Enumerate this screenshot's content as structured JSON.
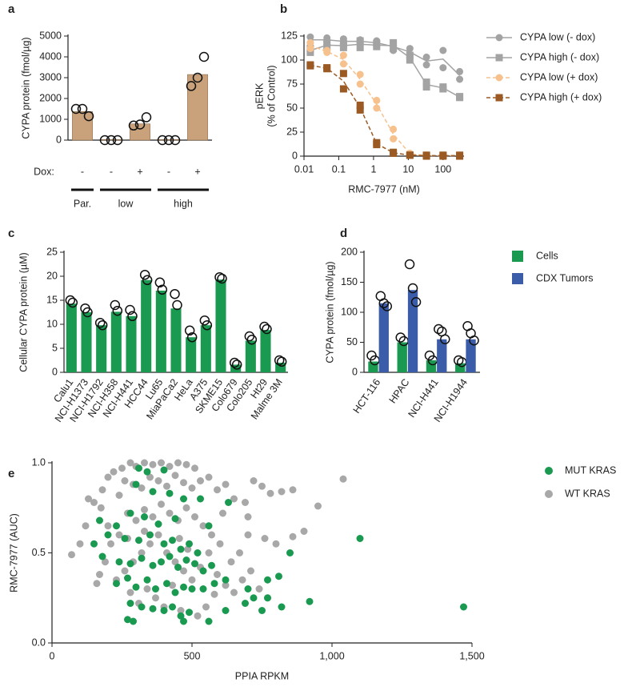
{
  "chart_data": [
    {
      "type": "bar",
      "label": "a",
      "ylabel": "CYPA protein (fmol/µg)",
      "categories": [
        "Par.",
        "low",
        "low",
        "high",
        "high"
      ],
      "dox_label": "Dox:",
      "dox": [
        "-",
        "-",
        "+",
        "-",
        "+"
      ],
      "values": [
        1370,
        30,
        780,
        30,
        3150
      ],
      "points": [
        [
          1500,
          1500,
          1150
        ],
        [
          0,
          0,
          0
        ],
        [
          700,
          750,
          1100
        ],
        [
          0,
          0,
          0
        ],
        [
          2600,
          3000,
          4000
        ]
      ],
      "color": "#c9a27c",
      "ylim": [
        0,
        5000
      ],
      "yticks": [
        0,
        1000,
        2000,
        3000,
        4000,
        5000
      ]
    },
    {
      "type": "line",
      "label": "b",
      "ylabel": [
        "pERK",
        "(% of Control)"
      ],
      "xlabel": "RMC-7977 (nM)",
      "log_x": true,
      "xlim": [
        0.01,
        400
      ],
      "xticks": [
        0.01,
        0.1,
        1,
        10,
        100
      ],
      "ylim": [
        0,
        125
      ],
      "yticks": [
        0,
        25,
        50,
        75,
        100,
        125
      ],
      "legend": "right",
      "series": [
        {
          "name": "CYPA low (- dox)",
          "color": "#a3a3a3",
          "marker": "circle",
          "dashed": false,
          "x": [
            0.0152,
            0.0152,
            0.0457,
            0.0457,
            0.137,
            0.137,
            0.412,
            0.412,
            1.23,
            1.23,
            3.7,
            3.7,
            11.1,
            11.1,
            33.3,
            33.3,
            100,
            100,
            300,
            300
          ],
          "values": [
            124,
            118,
            123,
            119,
            122,
            117,
            121,
            118,
            120,
            116,
            118,
            110,
            112,
            105,
            103,
            95,
            110,
            92,
            88,
            80
          ]
        },
        {
          "name": "CYPA high (- dox)",
          "color": "#a3a3a3",
          "marker": "square",
          "dashed": false,
          "x": [
            0.0152,
            0.0152,
            0.0457,
            0.0457,
            0.137,
            0.137,
            0.412,
            0.412,
            1.23,
            1.23,
            3.7,
            3.7,
            11.1,
            11.1,
            33.3,
            33.3,
            100,
            100,
            300,
            300
          ],
          "values": [
            112,
            108,
            118,
            113,
            117,
            113,
            120,
            113,
            117,
            114,
            118,
            112,
            100,
            105,
            77,
            72,
            72,
            70,
            62,
            61
          ]
        },
        {
          "name": "CYPA low (+ dox)",
          "color": "#f6c18d",
          "marker": "circle",
          "dashed": true,
          "x": [
            0.0152,
            0.0152,
            0.0457,
            0.0457,
            0.137,
            0.137,
            0.412,
            0.412,
            1.23,
            1.23,
            3.7,
            3.7,
            11.1,
            11.1,
            33.3,
            33.3,
            100,
            100,
            300,
            300
          ],
          "values": [
            118,
            112,
            110,
            108,
            105,
            96,
            85,
            75,
            58,
            50,
            28,
            18,
            3,
            2,
            1,
            0,
            0,
            1,
            0,
            1
          ]
        },
        {
          "name": "CYPA high (+ dox)",
          "color": "#9b5a24",
          "marker": "square",
          "dashed": true,
          "x": [
            0.0152,
            0.0152,
            0.0457,
            0.0457,
            0.137,
            0.137,
            0.412,
            0.412,
            1.23,
            1.23,
            3.7,
            3.7,
            11.1,
            11.1,
            33.3,
            33.3,
            100,
            100,
            300,
            300
          ],
          "values": [
            95,
            94,
            92,
            91,
            86,
            70,
            53,
            48,
            14,
            12,
            4,
            3,
            1,
            1,
            0,
            1,
            1,
            0,
            0,
            1
          ]
        }
      ]
    },
    {
      "type": "bar",
      "label": "c",
      "ylabel": "Cellular CYPA protein (µM)",
      "categories": [
        "Calu1",
        "NCI-H1373",
        "NCI-H1792",
        "NCI-H358",
        "NCI-H441",
        "HCC44",
        "Lu65",
        "MiaPaCa2",
        "HeLa",
        "A375",
        "SKME15",
        "Colo679",
        "Colo205",
        "Ht29",
        "Malme 3M"
      ],
      "values": [
        14.3,
        12.5,
        9.8,
        12.6,
        11.7,
        19.2,
        17,
        13.3,
        7.3,
        9.8,
        19.3,
        1.6,
        6.6,
        8.8,
        2
      ],
      "points": [
        [
          15,
          14.5
        ],
        [
          13.3,
          12.5
        ],
        [
          10.3,
          9.8
        ],
        [
          14,
          12.8
        ],
        [
          13,
          11.7
        ],
        [
          20.3,
          19.2
        ],
        [
          18.7,
          17.2
        ],
        [
          16.3,
          14
        ],
        [
          8.7,
          7.3
        ],
        [
          10.8,
          9.8
        ],
        [
          19.8,
          19.5
        ],
        [
          2,
          1.6
        ],
        [
          7.5,
          6.8
        ],
        [
          9.5,
          9
        ],
        [
          2.5,
          2.2
        ]
      ],
      "color": "#1a9a50",
      "ylim": [
        0,
        25
      ],
      "yticks": [
        0,
        5,
        10,
        15,
        20,
        25
      ]
    },
    {
      "type": "bar",
      "label": "d",
      "ylabel": "CYPA protein (fmol/µg)",
      "legend": "right",
      "categories": [
        "HCT-116",
        "HPAC",
        "NCI-H441",
        "NCI-H1944"
      ],
      "ylim": [
        0,
        200
      ],
      "yticks": [
        0,
        50,
        100,
        150,
        200
      ],
      "series": [
        {
          "name": "Cells",
          "color": "#1a9a50",
          "values": [
            18,
            50,
            20,
            15
          ],
          "points": [
            [
              28,
              20
            ],
            [
              58,
              52
            ],
            [
              28,
              20
            ],
            [
              20,
              17
            ]
          ]
        },
        {
          "name": "CDX Tumors",
          "color": "#3b5ca8",
          "values": [
            115,
            137,
            55,
            55
          ],
          "points": [
            [
              127,
              115,
              110
            ],
            [
              180,
              140,
              117
            ],
            [
              72,
              68,
              55
            ],
            [
              77,
              65,
              53
            ]
          ]
        }
      ]
    },
    {
      "type": "scatter",
      "label": "e",
      "ylabel": "RMC-7977 (AUC)",
      "xlabel": "PPIA RPKM",
      "legend": "right",
      "xlim": [
        0,
        1500
      ],
      "xticks": [
        0,
        500,
        {
          "value": 1000,
          "label": "1,000"
        },
        {
          "value": 1500,
          "label": "1,500"
        }
      ],
      "ylim": [
        0,
        1
      ],
      "yticks": [
        {
          "value": 0,
          "label": "0.0"
        },
        {
          "value": 0.5,
          "label": "0.5"
        },
        {
          "value": 1,
          "label": "1.0"
        }
      ],
      "series": [
        {
          "name": "MUT KRAS",
          "color": "#1a9a50",
          "x": [
            310,
            340,
            400,
            300,
            360,
            420,
            470,
            530,
            630,
            170,
            230,
            280,
            330,
            380,
            440,
            560,
            200,
            260,
            310,
            350,
            400,
            430,
            460,
            490,
            520,
            150,
            180,
            850,
            1100,
            240,
            280,
            320,
            360,
            390,
            420,
            450,
            480,
            510,
            540,
            570,
            230,
            270,
            300,
            340,
            370,
            410,
            440,
            470,
            500,
            540,
            580,
            620,
            700,
            720,
            770,
            810,
            690,
            750,
            820,
            920,
            1470,
            280,
            320,
            360,
            400,
            430,
            460,
            490,
            560,
            270,
            290,
            470,
            620,
            770
          ],
          "values": [
            0.97,
            0.95,
            0.96,
            0.88,
            0.84,
            0.83,
            0.8,
            0.8,
            0.78,
            0.68,
            0.65,
            0.72,
            0.7,
            0.66,
            0.69,
            0.65,
            0.6,
            0.58,
            0.57,
            0.6,
            0.55,
            0.57,
            0.52,
            0.55,
            0.5,
            0.55,
            0.48,
            0.5,
            0.58,
            0.45,
            0.44,
            0.47,
            0.43,
            0.45,
            0.48,
            0.42,
            0.46,
            0.44,
            0.4,
            0.43,
            0.33,
            0.36,
            0.31,
            0.35,
            0.3,
            0.33,
            0.28,
            0.31,
            0.3,
            0.3,
            0.33,
            0.35,
            0.3,
            0.25,
            0.35,
            0.37,
            0.22,
            0.18,
            0.2,
            0.23,
            0.2,
            0.22,
            0.2,
            0.19,
            0.18,
            0.2,
            0.15,
            0.17,
            0.12,
            0.13,
            0.12,
            0.12,
            0.18,
            0.25
          ]
        },
        {
          "name": "WT KRAS",
          "color": "#a8a8a8",
          "x": [
            280,
            300,
            330,
            360,
            390,
            420,
            450,
            480,
            510,
            250,
            220,
            200,
            180,
            150,
            120,
            100,
            70,
            130,
            260,
            290,
            320,
            350,
            380,
            410,
            440,
            470,
            500,
            530,
            560,
            590,
            620,
            650,
            690,
            720,
            750,
            780,
            820,
            860,
            950,
            1040,
            900,
            860,
            800,
            760,
            700,
            670,
            640,
            600,
            570,
            540,
            510,
            480,
            450,
            420,
            390,
            360,
            330,
            300,
            270,
            240,
            210,
            190,
            170,
            160,
            230,
            260,
            290,
            320,
            350,
            380,
            410,
            440,
            470,
            500,
            530,
            560,
            590,
            620,
            650,
            680,
            710,
            740,
            770,
            280,
            310,
            340,
            370,
            400,
            430,
            460,
            520,
            550,
            580,
            200,
            175,
            240,
            270,
            330,
            455,
            485,
            610,
            700
          ],
          "values": [
            1,
            0.98,
            1,
            0.99,
            1,
            0.98,
            1,
            0.99,
            0.97,
            0.97,
            0.95,
            0.92,
            0.85,
            0.78,
            0.65,
            0.55,
            0.49,
            0.8,
            0.9,
            0.88,
            0.86,
            0.92,
            0.9,
            0.87,
            0.93,
            0.89,
            0.86,
            0.9,
            0.92,
            0.85,
            0.88,
            0.8,
            0.78,
            0.9,
            0.87,
            0.83,
            0.84,
            0.85,
            0.76,
            0.91,
            0.62,
            0.59,
            0.55,
            0.58,
            0.6,
            0.5,
            0.45,
            0.55,
            0.6,
            0.65,
            0.7,
            0.75,
            0.68,
            0.72,
            0.77,
            0.7,
            0.74,
            0.68,
            0.72,
            0.6,
            0.55,
            0.45,
            0.38,
            0.33,
            0.35,
            0.4,
            0.45,
            0.5,
            0.55,
            0.6,
            0.5,
            0.45,
            0.4,
            0.35,
            0.42,
            0.5,
            0.38,
            0.32,
            0.28,
            0.35,
            0.4,
            0.3,
            0.25,
            0.28,
            0.22,
            0.3,
            0.25,
            0.2,
            0.32,
            0.18,
            0.15,
            0.2,
            0.27,
            0.65,
            0.75,
            0.82,
            0.58,
            0.62,
            0.58,
            0.52,
            0.72,
            0.7
          ]
        }
      ]
    }
  ]
}
